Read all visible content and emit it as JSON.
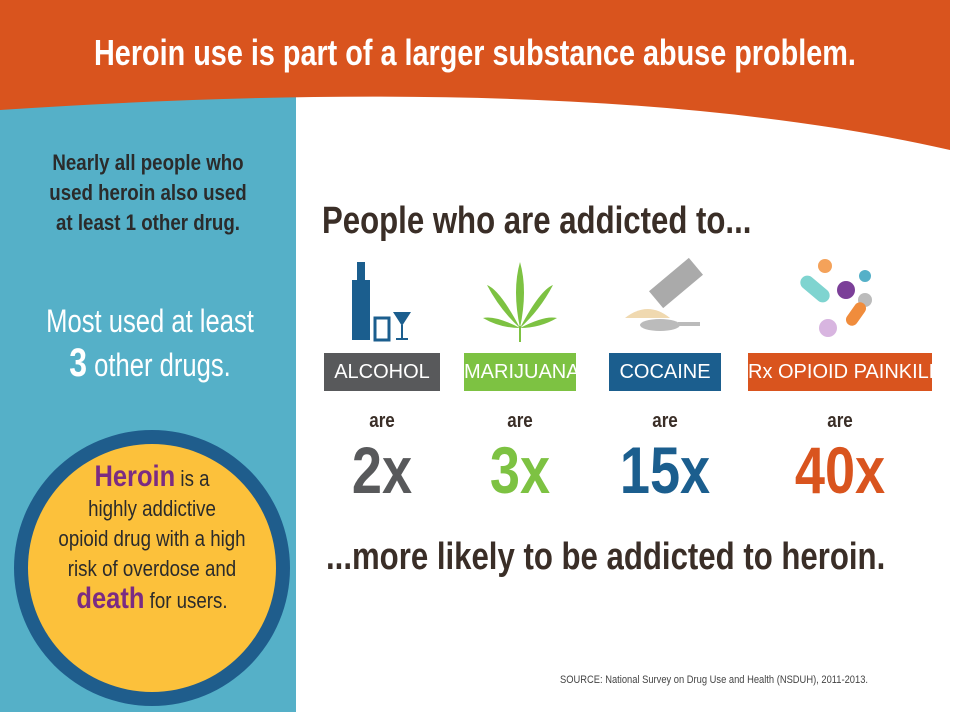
{
  "header": {
    "title": "Heroin use is part of a larger substance abuse problem."
  },
  "sidebar": {
    "fact_1": [
      "Nearly all people who",
      "used heroin also used",
      "at least 1 other drug."
    ],
    "fact_2": {
      "line_1": "Most used at least",
      "number": "3",
      "line_2": "other drugs."
    },
    "callout": {
      "emph_1": "Heroin",
      "line_1": "is a",
      "line_2": "highly addictive",
      "line_3": "opioid drug with a high",
      "line_4": "risk of overdose and",
      "emph_2": "death",
      "line_5": "for users."
    }
  },
  "main": {
    "intro": "People who are addicted to...",
    "drugs": [
      {
        "label": "ALCOHOL",
        "are": "are",
        "multiplier": "2x",
        "color": "#58595b"
      },
      {
        "label": "MARIJUANA",
        "are": "are",
        "multiplier": "3x",
        "color": "#7dc242"
      },
      {
        "label": "COCAINE",
        "are": "are",
        "multiplier": "15x",
        "color": "#1b5e8e"
      },
      {
        "label": "Rx OPIOID PAINKILLERS",
        "are": "are",
        "multiplier": "40x",
        "color": "#d9541e"
      }
    ],
    "outro": "...more likely to be addicted to heroin.",
    "source": "SOURCE: National Survey on Drug Use and Health (NSDUH), 2011-2013."
  }
}
